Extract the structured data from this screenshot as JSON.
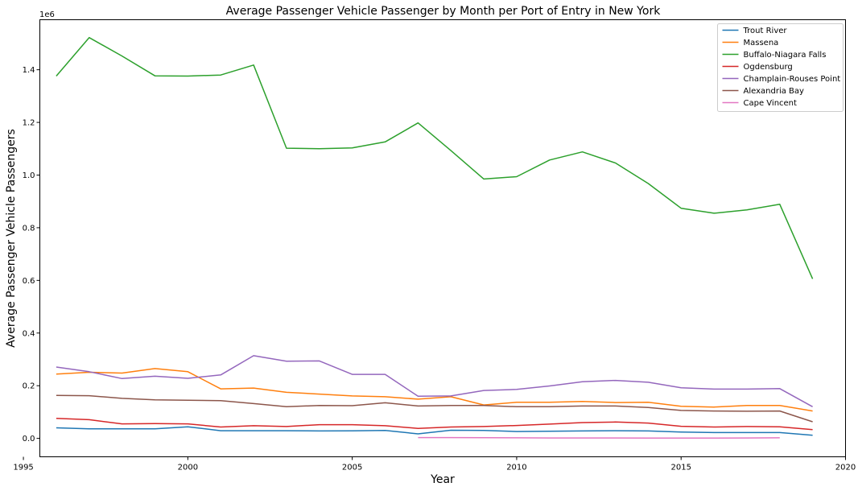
{
  "chart_data": {
    "type": "line",
    "title": "Average Passenger Vehicle Passenger by Month per Port of Entry in New York",
    "xlabel": "Year",
    "ylabel": "Average Passenger Vehicle Passengers",
    "y_scale_label": "1e6",
    "xlim": [
      1995.5,
      2020
    ],
    "ylim": [
      -70000,
      1590000
    ],
    "x_ticks": [
      1995,
      2000,
      2005,
      2010,
      2015,
      2020
    ],
    "x_tick_labels": [
      "1995",
      "2000",
      "2005",
      "2010",
      "2015",
      "2020"
    ],
    "y_ticks": [
      0,
      200000,
      400000,
      600000,
      800000,
      1000000,
      1200000,
      1400000
    ],
    "y_tick_labels": [
      "0.0",
      "0.2",
      "0.4",
      "0.6",
      "0.8",
      "1.0",
      "1.2",
      "1.4"
    ],
    "grid": false,
    "legend_position": "top-right",
    "series": [
      {
        "name": "Trout River",
        "color": "#1f77b4",
        "x": [
          1996,
          1997,
          1998,
          1999,
          2000,
          2001,
          2002,
          2003,
          2004,
          2005,
          2006,
          2007,
          2008,
          2009,
          2010,
          2011,
          2012,
          2013,
          2014,
          2015,
          2016,
          2017,
          2018,
          2019
        ],
        "values": [
          40000,
          36000,
          36000,
          36000,
          44000,
          29000,
          29000,
          29000,
          28000,
          28500,
          30000,
          17000,
          31000,
          30000,
          26000,
          27000,
          28000,
          29000,
          28000,
          24000,
          22000,
          22000,
          22000,
          12000
        ]
      },
      {
        "name": "Massena",
        "color": "#ff7f0e",
        "x": [
          1996,
          1997,
          1998,
          1999,
          2000,
          2001,
          2002,
          2003,
          2004,
          2005,
          2006,
          2007,
          2008,
          2009,
          2010,
          2011,
          2012,
          2013,
          2014,
          2015,
          2016,
          2017,
          2018,
          2019
        ],
        "values": [
          244000,
          251000,
          248000,
          265000,
          253000,
          188000,
          191000,
          175000,
          168000,
          161000,
          158000,
          149000,
          158000,
          127000,
          137000,
          137000,
          140000,
          136000,
          137000,
          122000,
          119000,
          125000,
          125000,
          104000
        ]
      },
      {
        "name": "Buffalo-Niagara Falls",
        "color": "#2ca02c",
        "x": [
          1996,
          1997,
          1998,
          1999,
          2000,
          2001,
          2002,
          2003,
          2004,
          2005,
          2006,
          2007,
          2008,
          2009,
          2010,
          2011,
          2012,
          2013,
          2014,
          2015,
          2016,
          2017,
          2018,
          2019
        ],
        "values": [
          1376000,
          1522000,
          1452000,
          1377000,
          1376000,
          1380000,
          1418000,
          1102000,
          1100000,
          1103000,
          1126000,
          1198000,
          1093000,
          985000,
          994000,
          1057000,
          1088000,
          1046000,
          968000,
          874000,
          855000,
          868000,
          889000,
          606000
        ]
      },
      {
        "name": "Ogdensburg",
        "color": "#d62728",
        "x": [
          1996,
          1997,
          1998,
          1999,
          2000,
          2001,
          2002,
          2003,
          2004,
          2005,
          2006,
          2007,
          2008,
          2009,
          2010,
          2011,
          2012,
          2013,
          2014,
          2015,
          2016,
          2017,
          2018,
          2019
        ],
        "values": [
          76000,
          71000,
          55000,
          56000,
          55000,
          43000,
          48000,
          45000,
          52000,
          52000,
          48000,
          38000,
          43000,
          45000,
          49000,
          54000,
          60000,
          62000,
          58000,
          46000,
          43000,
          45000,
          44000,
          33000
        ]
      },
      {
        "name": "Champlain-Rouses Point",
        "color": "#9467bd",
        "x": [
          1996,
          1997,
          1998,
          1999,
          2000,
          2001,
          2002,
          2003,
          2004,
          2005,
          2006,
          2007,
          2008,
          2009,
          2010,
          2011,
          2012,
          2013,
          2014,
          2015,
          2016,
          2017,
          2018,
          2019
        ],
        "values": [
          271000,
          253000,
          227000,
          236000,
          228000,
          241000,
          314000,
          293000,
          294000,
          243000,
          243000,
          160000,
          161000,
          182000,
          186000,
          199000,
          215000,
          220000,
          213000,
          192000,
          187000,
          187000,
          189000,
          120000
        ]
      },
      {
        "name": "Alexandria Bay",
        "color": "#8c564b",
        "x": [
          1996,
          1997,
          1998,
          1999,
          2000,
          2001,
          2002,
          2003,
          2004,
          2005,
          2006,
          2007,
          2008,
          2009,
          2010,
          2011,
          2012,
          2013,
          2014,
          2015,
          2016,
          2017,
          2018,
          2019
        ],
        "values": [
          163000,
          162000,
          152000,
          146000,
          145000,
          143000,
          132000,
          120000,
          125000,
          124000,
          135000,
          123000,
          125000,
          125000,
          120000,
          120000,
          123000,
          123000,
          117000,
          106000,
          104000,
          103000,
          104000,
          63000
        ]
      },
      {
        "name": "Cape Vincent",
        "color": "#e377c2",
        "x": [
          2007,
          2008,
          2009,
          2010,
          2011,
          2012,
          2013,
          2014,
          2015,
          2016,
          2017,
          2018
        ],
        "values": [
          3000,
          3000,
          2500,
          2000,
          1500,
          1500,
          1500,
          1000,
          1000,
          1000,
          1500,
          2000
        ]
      }
    ]
  }
}
